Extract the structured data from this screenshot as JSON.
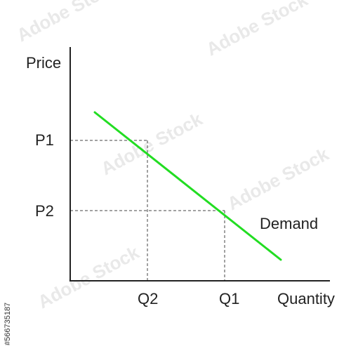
{
  "chart_data": {
    "type": "line",
    "ylabel": "Price",
    "xlabel": "Quantity",
    "x_ticks": [
      "Q2",
      "Q1"
    ],
    "y_ticks": [
      "P1",
      "P2"
    ],
    "series": [
      {
        "name": "Demand",
        "color": "#22dd22",
        "x": [
          0.35,
          3.0
        ],
        "y": [
          2.4,
          0.3
        ]
      }
    ],
    "points": [
      {
        "x_label": "Q2",
        "y_label": "P1",
        "x": 1.1,
        "y": 2.0
      },
      {
        "x_label": "Q1",
        "y_label": "P2",
        "x": 2.2,
        "y": 1.0
      }
    ],
    "xlim": [
      0,
      3.7
    ],
    "ylim": [
      0,
      3.0
    ],
    "grid": false,
    "legend": "none"
  },
  "watermark": {
    "text": "Adobe Stock",
    "id_text": "#566735187"
  },
  "colors": {
    "axis": "#222222",
    "guide": "#444444",
    "demand": "#22dd22"
  }
}
